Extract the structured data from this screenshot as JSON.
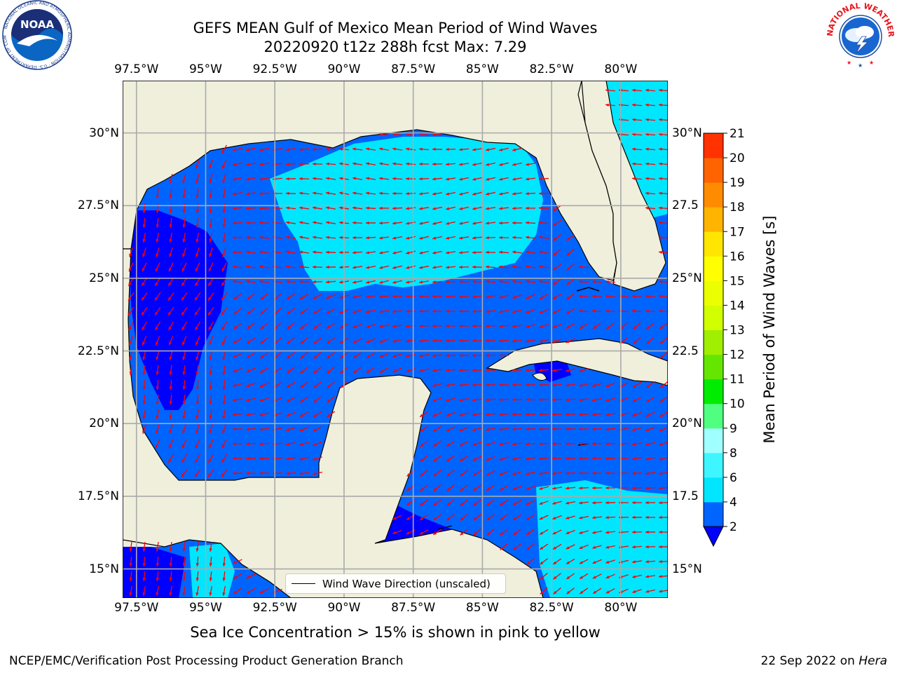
{
  "header": {
    "title_line1": "GEFS MEAN Gulf of Mexico Mean Period of Wind Waves",
    "title_line2": "20220920 t12z 288h fcst   Max: 7.29"
  },
  "axes": {
    "lon_labels": [
      "97.5°W",
      "95°W",
      "92.5°W",
      "90°W",
      "87.5°W",
      "85°W",
      "82.5°W",
      "80°W"
    ],
    "lon_values": [
      -97.5,
      -95,
      -92.5,
      -90,
      -87.5,
      -85,
      -82.5,
      -80
    ],
    "lat_labels_left": [
      "30°N",
      "27.5°N",
      "25°N",
      "22.5°N",
      "20°N",
      "17.5°N",
      "15°N"
    ],
    "lat_labels_right": [
      "30°N",
      "27.5",
      "25°N",
      "22.5",
      "20°N",
      "17.5",
      "15°N"
    ],
    "lat_values": [
      30,
      27.5,
      25,
      22.5,
      20,
      17.5,
      15
    ],
    "lon_range": [
      -98,
      -78.3
    ],
    "lat_range": [
      14,
      31.8
    ]
  },
  "colorbar": {
    "label": "Mean Period of Wind Waves [s]",
    "ticks": [
      "2",
      "4",
      "6",
      "8",
      "9",
      "10",
      "11",
      "12",
      "13",
      "14",
      "15",
      "16",
      "17",
      "18",
      "19",
      "20",
      "21"
    ],
    "colors": [
      "#0064ff",
      "#00e6ff",
      "#3ef6ff",
      "#a0ffff",
      "#50ff80",
      "#00ec00",
      "#64e600",
      "#a0ee00",
      "#d2ff00",
      "#ecff00",
      "#ffff00",
      "#ffe600",
      "#ffb400",
      "#ff8c00",
      "#ff6400",
      "#ff3200"
    ],
    "under_color": "#0000ff"
  },
  "legend": {
    "label": "Wind Wave Direction (unscaled)"
  },
  "notes": {
    "ice": "Sea Ice Concentration > 15% is shown in pink to yellow"
  },
  "footer": {
    "left": "NCEP/EMC/Verification Post Processing Product Generation Branch",
    "date": "22 Sep 2022 on",
    "machine": "Hera"
  },
  "logos": {
    "noaa": "NOAA",
    "noaa_ring": "NATIONAL OCEANIC AND ATMOSPHERIC ADMINISTRATION · U.S. DEPARTMENT OF COMMERCE",
    "nws_ring": "NATIONAL WEATHER SERVICE"
  },
  "colors": {
    "land": "#efefdc",
    "deep_blue": "#0000ff",
    "mid_blue": "#0064ff",
    "cyan": "#00e6ff",
    "light_cyan": "#3ef6ff",
    "arrow": "#ff0000"
  }
}
